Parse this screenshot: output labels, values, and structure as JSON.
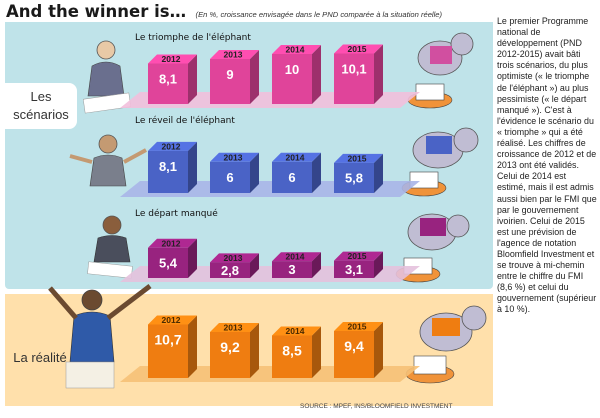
{
  "header": {
    "title": "And the winner is…",
    "subtitle": "(En %, croissance envisagée dans le PND comparée à la situation réelle)"
  },
  "labels": {
    "scenarios": "Les scénarios",
    "reality": "La réalité"
  },
  "rows": [
    {
      "title": "Le triomphe de l'éléphant"
    },
    {
      "title": "Le réveil de l'éléphant"
    },
    {
      "title": "Le départ manqué"
    },
    {
      "title": ""
    }
  ],
  "chart_data": {
    "type": "bar",
    "categories": [
      "2012",
      "2013",
      "2014",
      "2015"
    ],
    "series": [
      {
        "name": "Le triomphe de l'éléphant",
        "values": [
          8.1,
          9,
          10,
          10.1
        ],
        "labels": [
          "8,1",
          "9",
          "10",
          "10,1"
        ],
        "color": "#e0449a"
      },
      {
        "name": "Le réveil de l'éléphant",
        "values": [
          8.1,
          6,
          6,
          5.8
        ],
        "labels": [
          "8,1",
          "6",
          "6",
          "5,8"
        ],
        "color": "#4a63c6"
      },
      {
        "name": "Le départ manqué",
        "values": [
          5.4,
          2.8,
          3,
          3.1
        ],
        "labels": [
          "5,4",
          "2,8",
          "3",
          "3,1"
        ],
        "color": "#98237f"
      },
      {
        "name": "La réalité",
        "values": [
          10.7,
          9.2,
          8.5,
          9.4
        ],
        "labels": [
          "10,7",
          "9,2",
          "8,5",
          "9,4"
        ],
        "color": "#ef7d11"
      }
    ]
  },
  "source": "SOURCE : MPEF, INS/BLOOMFIELD INVESTMENT",
  "side_text": "Le premier Programme national de développement (PND 2012-2015) avait bâti trois scénarios, du plus optimiste (« le triomphe de l'éléphant ») au plus pessimiste (« le départ manqué »). C'est à l'évidence le scénario du « triomphe » qui a été réalisé. Les chiffres de croissance de 2012 et de 2013 ont été validés. Celui de 2014 est estimé, mais il est admis aussi bien par le FMI que par le gouvernement ivoirien. Celui de 2015 est une prévision de l'agence de notation Bloomfield Investment et se trouve à mi-chemin entre le chiffre du FMI (8,6 %) et celui du gouvernement (supérieur à 10 %)."
}
